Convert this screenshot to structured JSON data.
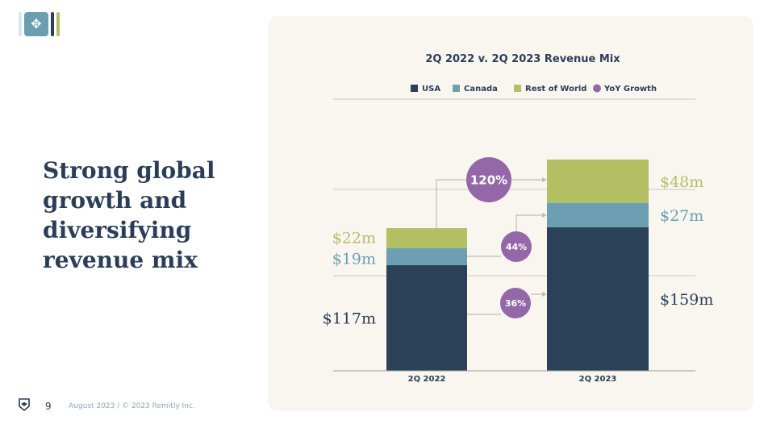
{
  "headline": "Strong global growth and diversifying revenue mix",
  "footer": {
    "page": "9",
    "copyright": "August 2023 / © 2023 Remitly Inc."
  },
  "chart_data": {
    "type": "bar",
    "stacked": true,
    "title": "2Q 2022 v. 2Q 2023 Revenue Mix",
    "categories": [
      "2Q 2022",
      "2Q 2023"
    ],
    "unit": "$m",
    "series": [
      {
        "name": "USA",
        "color": "#2b4158",
        "values": [
          117,
          159
        ],
        "labels": [
          "$117m",
          "$159m"
        ]
      },
      {
        "name": "Canada",
        "color": "#6c9fb1",
        "values": [
          19,
          27
        ],
        "labels": [
          "$19m",
          "$27m"
        ]
      },
      {
        "name": "Rest of World",
        "color": "#b3bf63",
        "values": [
          22,
          48
        ],
        "labels": [
          "$22m",
          "$48m"
        ]
      }
    ],
    "growth": {
      "name": "YoY Growth",
      "color": "#9468a8",
      "values": [
        {
          "series": "USA",
          "label": "36%"
        },
        {
          "series": "Canada",
          "label": "44%"
        },
        {
          "series": "Rest of World",
          "label": "120%"
        }
      ]
    },
    "legend": "top"
  }
}
